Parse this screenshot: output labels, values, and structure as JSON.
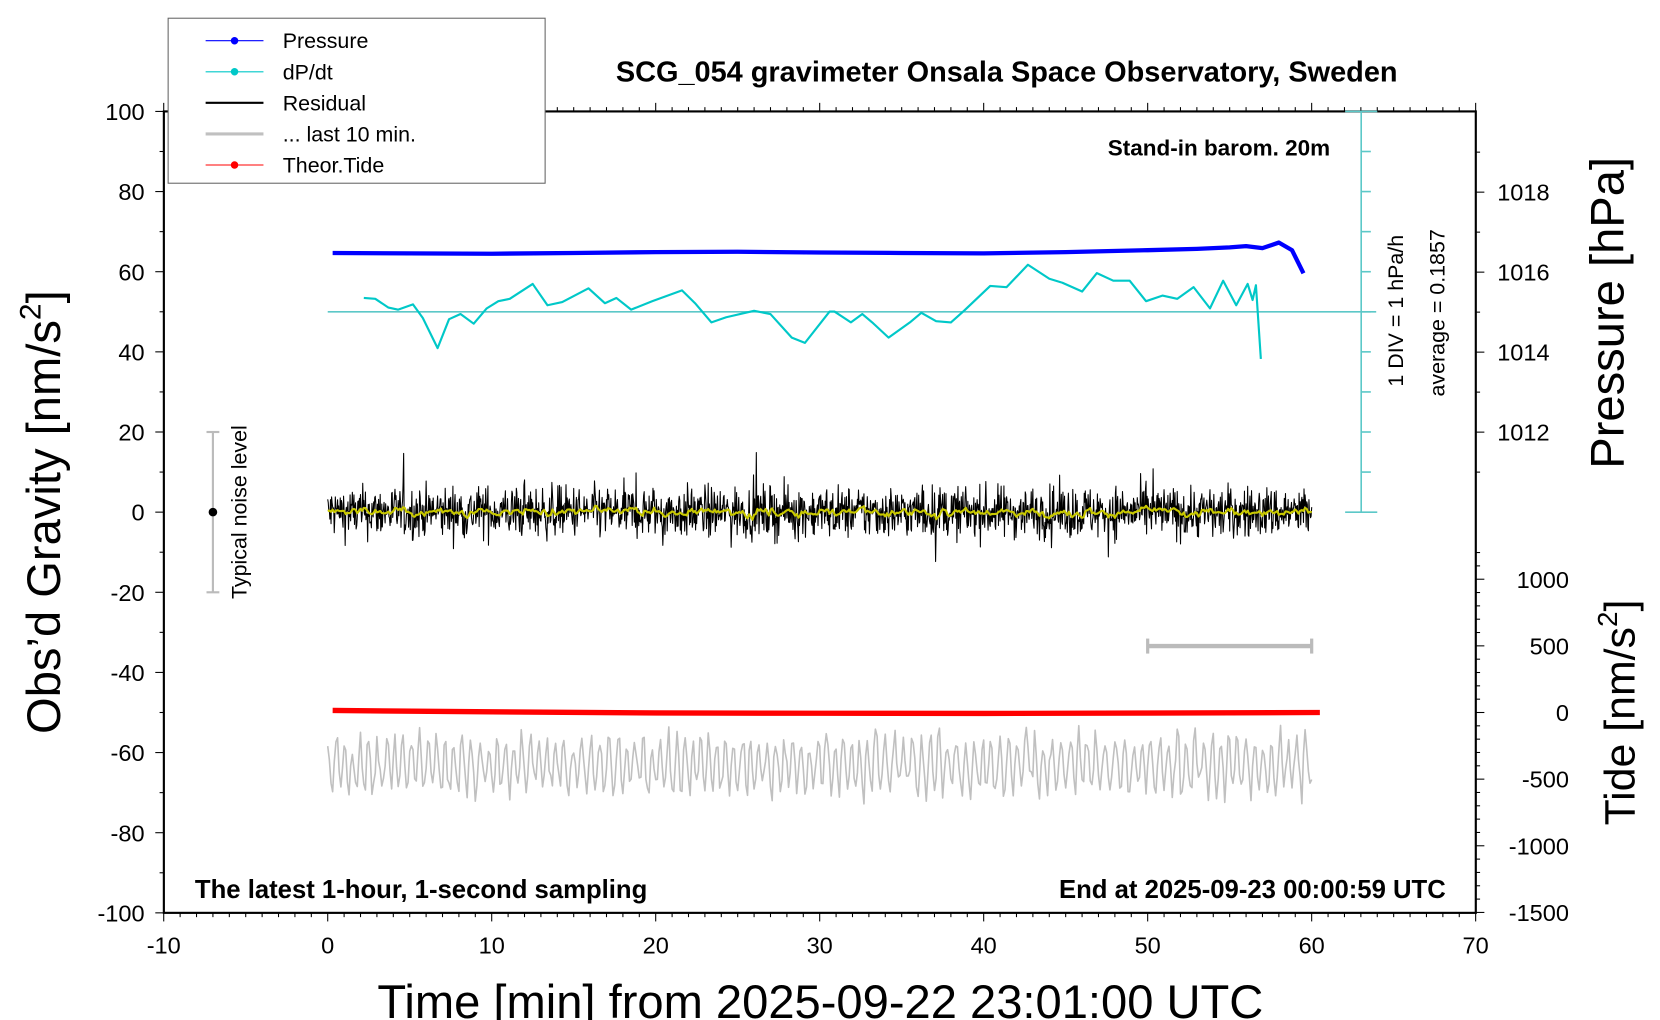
{
  "chart_data": {
    "type": "line",
    "title": "SCG_054 gravimeter Onsala Space Observatory, Sweden",
    "xlabel": "Time [min] from 2025-09-22 23:01:00 UTC",
    "ylabel_left": {
      "text": "Obs’d Gravity [nm/s",
      "sup": "2",
      "close": "]"
    },
    "ylabel_right_pressure": "Pressure [hPa]",
    "ylabel_right_tide": {
      "text": "Tide [nm/s",
      "sup": "2",
      "close": "]"
    },
    "xlim": [
      -10,
      70
    ],
    "ylim_left": [
      -100,
      100
    ],
    "xticks": [
      -10,
      0,
      10,
      20,
      30,
      40,
      50,
      60,
      70
    ],
    "yticks_left": [
      100,
      80,
      60,
      40,
      20,
      0,
      -20,
      -40,
      -60,
      -80,
      -100
    ],
    "yticks_pressure": [
      1018,
      1016,
      1014,
      1012
    ],
    "yticks_tide": [
      1000,
      500,
      0,
      -500,
      -1000,
      -1500
    ],
    "annotations": {
      "barometer": "Stand-in barom. 20m",
      "div_scale": "1 DIV = 1 hPa/h",
      "average": "average = 0.1857",
      "noise_label": "Typical noise level",
      "bottom_left": "The latest 1-hour, 1-second sampling",
      "bottom_right": "End at 2025-09-23 00:00:59 UTC"
    },
    "legend": {
      "placement": "top-left",
      "entries": [
        {
          "label": "Pressure",
          "color": "#0000ff",
          "marker": true
        },
        {
          "label": "dP/dt",
          "color": "#00c8c8",
          "marker": true
        },
        {
          "label": "Residual",
          "color": "#000000",
          "marker": false
        },
        {
          "label": "... last 10 min.",
          "color": "#c0c0c0",
          "marker": false
        },
        {
          "label": "Theor.Tide",
          "color": "#ff0000",
          "marker": true
        }
      ]
    },
    "dpdt_average": 0.1857,
    "noise_level": {
      "x": -7,
      "range": [
        -20,
        20
      ]
    },
    "last10_bar": [
      50,
      60
    ],
    "series": [
      {
        "name": "Pressure",
        "unit": "hPa",
        "color": "#0000ff",
        "x": [
          0.3,
          5,
          10,
          15,
          20,
          25,
          30,
          35,
          40,
          45,
          50,
          53,
          55,
          56,
          57,
          58,
          58.8,
          59.5
        ],
        "y": [
          1016.48,
          1016.47,
          1016.46,
          1016.48,
          1016.5,
          1016.51,
          1016.49,
          1016.48,
          1016.47,
          1016.5,
          1016.55,
          1016.58,
          1016.62,
          1016.65,
          1016.6,
          1016.74,
          1016.55,
          1015.97
        ]
      },
      {
        "name": "dP/dt",
        "unit": "hPa/h",
        "color": "#00c8c8",
        "x": [
          2.2,
          2.9,
          3.7,
          4.3,
          5.2,
          5.8,
          6.7,
          7.4,
          8.1,
          8.9,
          9.7,
          10.4,
          11.1,
          12.5,
          13.4,
          14.3,
          15.9,
          16.9,
          17.6,
          18.5,
          19.8,
          21.6,
          22.4,
          23.4,
          24.3,
          26.0,
          27.0,
          28.3,
          29.1,
          30.6,
          30.9,
          31.9,
          32.6,
          33.2,
          34.2,
          35.5,
          36.2,
          37.1,
          38.0,
          38.8,
          40.4,
          41.4,
          42.7,
          44.0,
          44.8,
          46.0,
          46.9,
          47.9,
          48.9,
          49.9,
          50.9,
          51.8,
          52.8,
          53.8,
          54.6,
          55.4,
          56.1,
          56.4,
          56.6,
          56.9
        ],
        "y": [
          0.53,
          0.51,
          0.29,
          0.24,
          0.37,
          0.03,
          -0.72,
          0.0,
          0.13,
          -0.11,
          0.27,
          0.45,
          0.51,
          0.88,
          0.35,
          0.43,
          0.77,
          0.4,
          0.53,
          0.24,
          0.45,
          0.72,
          0.4,
          -0.08,
          0.05,
          0.21,
          0.13,
          -0.46,
          -0.59,
          0.19,
          0.19,
          -0.08,
          0.13,
          -0.08,
          -0.46,
          -0.08,
          0.16,
          -0.05,
          -0.08,
          0.21,
          0.83,
          0.8,
          1.36,
          1.01,
          0.91,
          0.69,
          1.15,
          0.96,
          0.96,
          0.45,
          0.59,
          0.51,
          0.8,
          0.27,
          0.96,
          0.35,
          0.88,
          0.48,
          0.85,
          -0.99
        ]
      },
      {
        "name": "Residual",
        "unit": "nm/s2",
        "color": "#000000",
        "x_range": [
          0,
          60
        ],
        "std": 3.2,
        "peak": 15
      },
      {
        "name": "Residual smoothed",
        "unit": "nm/s2",
        "color": "#c8c800",
        "x_range": [
          0,
          60
        ],
        "std": 0.6
      },
      {
        "name": "... last 10 min.",
        "unit": "nm/s2",
        "color": "#c0c0c0",
        "x_range": [
          0,
          60
        ],
        "center": -63,
        "amplitude": 7
      },
      {
        "name": "Theor.Tide",
        "unit": "nm/s2",
        "color": "#ff0000",
        "x": [
          0.3,
          10,
          20,
          30,
          40,
          50,
          60.5
        ],
        "y": [
          15,
          5,
          -3,
          -6,
          -7,
          -4,
          0
        ]
      }
    ]
  }
}
